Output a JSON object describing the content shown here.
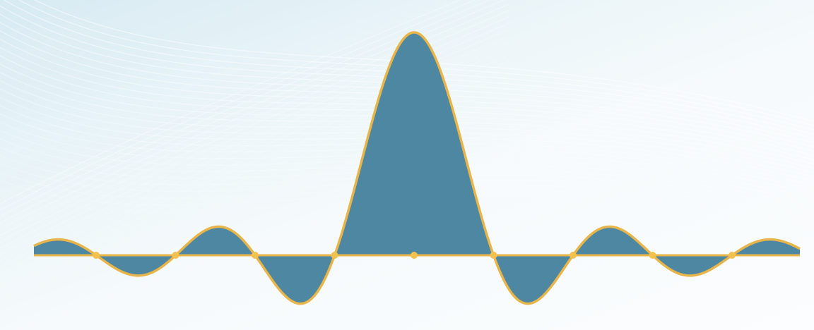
{
  "diagram": {
    "function": "sin(x)/x",
    "x_range": [
      -15.7,
      15.7
    ],
    "zero_crossings": [
      -4,
      -3,
      -2,
      -1,
      0,
      1,
      2,
      3,
      4
    ],
    "colors": {
      "fill": "#4e87a2",
      "outline": "#e8b54a",
      "marker": "#f2c14e",
      "baseline": "#e8b54a",
      "background_light": "#f6fafc",
      "background_tint": "#d7eaf2",
      "wave_lines": "#ffffff"
    },
    "background_pattern": "swoosh-lines"
  }
}
